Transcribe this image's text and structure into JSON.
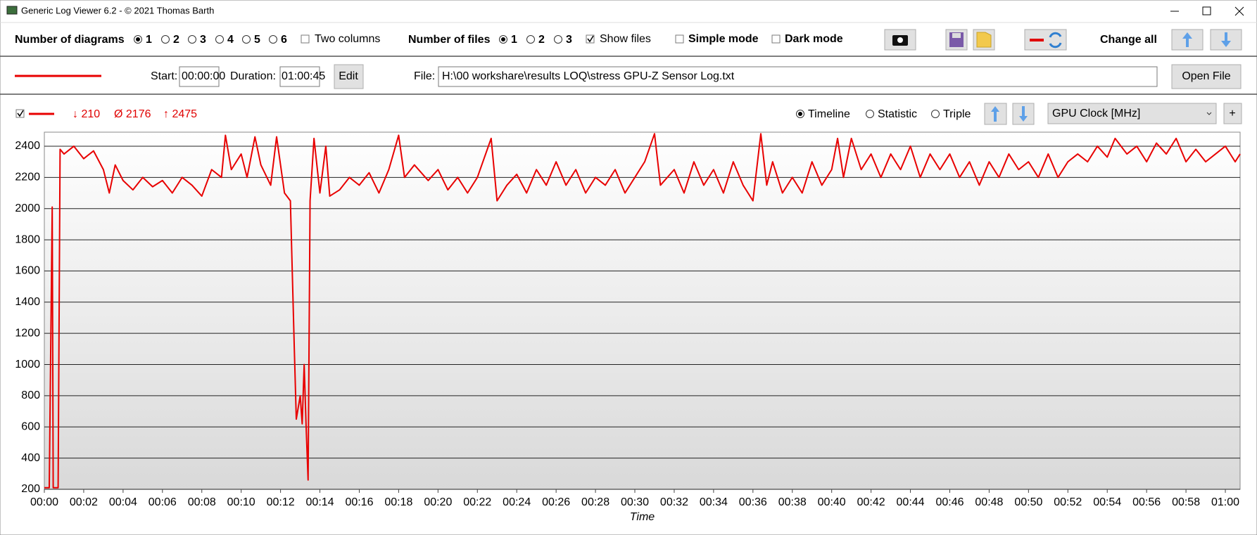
{
  "window": {
    "title": "Generic Log Viewer 6.2 - © 2021 Thomas Barth"
  },
  "toolbar": {
    "diagrams_label": "Number of diagrams",
    "diagram_options": [
      "1",
      "2",
      "3",
      "4",
      "5",
      "6"
    ],
    "two_columns": "Two columns",
    "files_label": "Number of files",
    "file_options": [
      "1",
      "2",
      "3"
    ],
    "show_files": "Show files",
    "simple_mode": "Simple mode",
    "dark_mode": "Dark mode",
    "change_all": "Change all"
  },
  "file_row": {
    "start_label": "Start:",
    "start": "00:00:00",
    "duration_label": "Duration:",
    "duration": "01:00:45",
    "edit": "Edit",
    "file_label": "File:",
    "file_path": "H:\\00 workshare\\results LOQ\\stress GPU-Z Sensor Log.txt",
    "open_file": "Open File"
  },
  "diagram_bar": {
    "min": "↓ 210",
    "avg": "Ø 2176",
    "max": "↑ 2475",
    "views": [
      "Timeline",
      "Statistic",
      "Triple"
    ],
    "sensor": "GPU Clock [MHz]",
    "add": "+"
  },
  "chart_data": {
    "type": "line",
    "xlabel": "Time",
    "xlim": [
      0,
      60.75
    ],
    "ylim": [
      200,
      2490
    ],
    "yticks": [
      200,
      400,
      600,
      800,
      1000,
      1200,
      1400,
      1600,
      1800,
      2000,
      2200,
      2400
    ],
    "xticks": [
      {
        "value": 0,
        "label": "00:00"
      },
      {
        "value": 2,
        "label": "00:02"
      },
      {
        "value": 4,
        "label": "00:04"
      },
      {
        "value": 6,
        "label": "00:06"
      },
      {
        "value": 8,
        "label": "00:08"
      },
      {
        "value": 10,
        "label": "00:10"
      },
      {
        "value": 12,
        "label": "00:12"
      },
      {
        "value": 14,
        "label": "00:14"
      },
      {
        "value": 16,
        "label": "00:16"
      },
      {
        "value": 18,
        "label": "00:18"
      },
      {
        "value": 20,
        "label": "00:20"
      },
      {
        "value": 22,
        "label": "00:22"
      },
      {
        "value": 24,
        "label": "00:24"
      },
      {
        "value": 26,
        "label": "00:26"
      },
      {
        "value": 28,
        "label": "00:28"
      },
      {
        "value": 30,
        "label": "00:30"
      },
      {
        "value": 32,
        "label": "00:32"
      },
      {
        "value": 34,
        "label": "00:34"
      },
      {
        "value": 36,
        "label": "00:36"
      },
      {
        "value": 38,
        "label": "00:38"
      },
      {
        "value": 40,
        "label": "00:40"
      },
      {
        "value": 42,
        "label": "00:42"
      },
      {
        "value": 44,
        "label": "00:44"
      },
      {
        "value": 46,
        "label": "00:46"
      },
      {
        "value": 48,
        "label": "00:48"
      },
      {
        "value": 50,
        "label": "00:50"
      },
      {
        "value": 52,
        "label": "00:52"
      },
      {
        "value": 54,
        "label": "00:54"
      },
      {
        "value": 56,
        "label": "00:56"
      },
      {
        "value": 58,
        "label": "00:58"
      },
      {
        "value": 60,
        "label": "01:00"
      }
    ],
    "grid": true,
    "series": [
      {
        "color": "#e80000",
        "x": [
          0,
          0.25,
          0.4,
          0.45,
          0.7,
          0.8,
          1,
          1.5,
          2,
          2.5,
          3,
          3.3,
          3.6,
          4,
          4.5,
          5,
          5.5,
          6,
          6.5,
          7,
          7.5,
          8,
          8.5,
          9,
          9.2,
          9.5,
          10,
          10.3,
          10.7,
          11,
          11.5,
          11.8,
          12.2,
          12.5,
          12.7,
          12.8,
          13,
          13.1,
          13.2,
          13.3,
          13.4,
          13.5,
          13.7,
          14,
          14.3,
          14.5,
          15,
          15.5,
          16,
          16.5,
          17,
          17.5,
          18,
          18.3,
          18.8,
          19.5,
          20,
          20.5,
          21,
          21.5,
          22,
          22.7,
          23,
          23.5,
          24,
          24.5,
          25,
          25.5,
          26,
          26.5,
          27,
          27.5,
          28,
          28.5,
          29,
          29.5,
          30,
          30.5,
          31,
          31.3,
          32,
          32.5,
          33,
          33.5,
          34,
          34.5,
          35,
          35.5,
          36,
          36.4,
          36.7,
          37,
          37.5,
          38,
          38.5,
          39,
          39.5,
          40,
          40.3,
          40.6,
          41,
          41.5,
          42,
          42.5,
          43,
          43.5,
          44,
          44.5,
          45,
          45.5,
          46,
          46.5,
          47,
          47.5,
          48,
          48.5,
          49,
          49.5,
          50,
          50.5,
          51,
          51.5,
          52,
          52.5,
          53,
          53.5,
          54,
          54.4,
          55,
          55.5,
          56,
          56.5,
          57,
          57.5,
          58,
          58.5,
          59,
          59.5,
          60,
          60.5,
          60.75
        ],
        "values": [
          210,
          210,
          2010,
          210,
          210,
          2380,
          2350,
          2400,
          2320,
          2370,
          2250,
          2100,
          2280,
          2180,
          2120,
          2200,
          2140,
          2180,
          2100,
          2200,
          2150,
          2080,
          2250,
          2200,
          2470,
          2250,
          2350,
          2200,
          2460,
          2280,
          2150,
          2460,
          2100,
          2050,
          1100,
          650,
          800,
          620,
          1000,
          600,
          260,
          2050,
          2450,
          2100,
          2400,
          2080,
          2120,
          2200,
          2150,
          2230,
          2100,
          2250,
          2470,
          2200,
          2280,
          2180,
          2250,
          2120,
          2200,
          2100,
          2200,
          2450,
          2050,
          2150,
          2220,
          2100,
          2250,
          2150,
          2300,
          2150,
          2250,
          2100,
          2200,
          2150,
          2250,
          2100,
          2200,
          2300,
          2480,
          2150,
          2250,
          2100,
          2300,
          2150,
          2250,
          2100,
          2300,
          2150,
          2050,
          2480,
          2150,
          2300,
          2100,
          2200,
          2100,
          2300,
          2150,
          2250,
          2450,
          2200,
          2450,
          2250,
          2350,
          2200,
          2350,
          2250,
          2400,
          2200,
          2350,
          2250,
          2350,
          2200,
          2300,
          2150,
          2300,
          2200,
          2350,
          2250,
          2300,
          2200,
          2350,
          2200,
          2300,
          2350,
          2300,
          2400,
          2330,
          2450,
          2350,
          2400,
          2300,
          2420,
          2350,
          2450,
          2300,
          2380,
          2300,
          2350,
          2400,
          2300,
          2350
        ]
      }
    ]
  }
}
